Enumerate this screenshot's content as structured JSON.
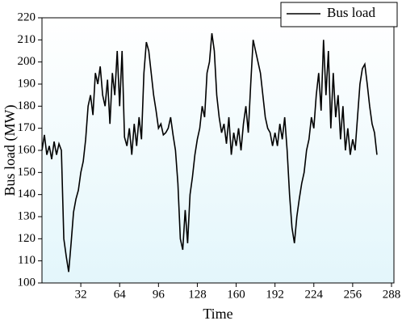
{
  "chart_data": {
    "type": "line",
    "xlabel": "Time",
    "ylabel": "Bus load (MW)",
    "xlim": [
      0,
      290
    ],
    "xticks": [
      32,
      64,
      96,
      128,
      160,
      192,
      224,
      256,
      288
    ],
    "ylim": [
      100,
      220
    ],
    "yticks": [
      100,
      110,
      120,
      130,
      140,
      150,
      160,
      170,
      180,
      190,
      200,
      210,
      220
    ],
    "legend": "upper right",
    "x": [
      0,
      2,
      4,
      6,
      8,
      10,
      12,
      14,
      16,
      18,
      20,
      22,
      24,
      26,
      28,
      30,
      32,
      34,
      36,
      38,
      40,
      42,
      44,
      46,
      48,
      50,
      52,
      54,
      56,
      58,
      60,
      62,
      64,
      66,
      68,
      70,
      72,
      74,
      76,
      78,
      80,
      82,
      84,
      86,
      88,
      90,
      92,
      94,
      96,
      98,
      100,
      102,
      104,
      106,
      108,
      110,
      112,
      114,
      116,
      118,
      120,
      122,
      124,
      126,
      128,
      130,
      132,
      134,
      136,
      138,
      140,
      142,
      144,
      146,
      148,
      150,
      152,
      154,
      156,
      158,
      160,
      162,
      164,
      166,
      168,
      170,
      172,
      174,
      176,
      178,
      180,
      182,
      184,
      186,
      188,
      190,
      192,
      194,
      196,
      198,
      200,
      202,
      204,
      206,
      208,
      210,
      212,
      214,
      216,
      218,
      220,
      222,
      224,
      226,
      228,
      230,
      232,
      234,
      236,
      238,
      240,
      242,
      244,
      246,
      248,
      250,
      252,
      254,
      256,
      258,
      260,
      262,
      264,
      266,
      268,
      270,
      272,
      274,
      276
    ],
    "series": [
      {
        "name": "Bus load",
        "color": "#000000",
        "values": [
          160,
          167,
          158,
          162,
          156,
          164,
          158,
          163,
          160,
          120,
          112,
          105,
          118,
          132,
          138,
          142,
          150,
          155,
          165,
          180,
          185,
          176,
          195,
          190,
          198,
          185,
          180,
          192,
          172,
          195,
          185,
          205,
          180,
          205,
          166,
          162,
          170,
          158,
          172,
          162,
          175,
          165,
          195,
          209,
          205,
          195,
          185,
          178,
          170,
          172,
          167,
          168,
          170,
          175,
          167,
          160,
          145,
          120,
          115,
          133,
          118,
          140,
          148,
          158,
          165,
          170,
          180,
          175,
          195,
          200,
          213,
          205,
          185,
          175,
          168,
          172,
          163,
          175,
          158,
          168,
          162,
          170,
          160,
          172,
          180,
          168,
          190,
          210,
          205,
          200,
          195,
          185,
          175,
          170,
          168,
          162,
          168,
          162,
          172,
          165,
          175,
          160,
          140,
          125,
          118,
          130,
          138,
          145,
          150,
          160,
          165,
          175,
          170,
          185,
          195,
          178,
          210,
          185,
          205,
          170,
          195,
          175,
          185,
          165,
          180,
          160,
          170,
          158,
          165,
          160,
          175,
          190,
          197,
          199,
          190,
          180,
          172,
          168,
          158
        ]
      }
    ]
  }
}
